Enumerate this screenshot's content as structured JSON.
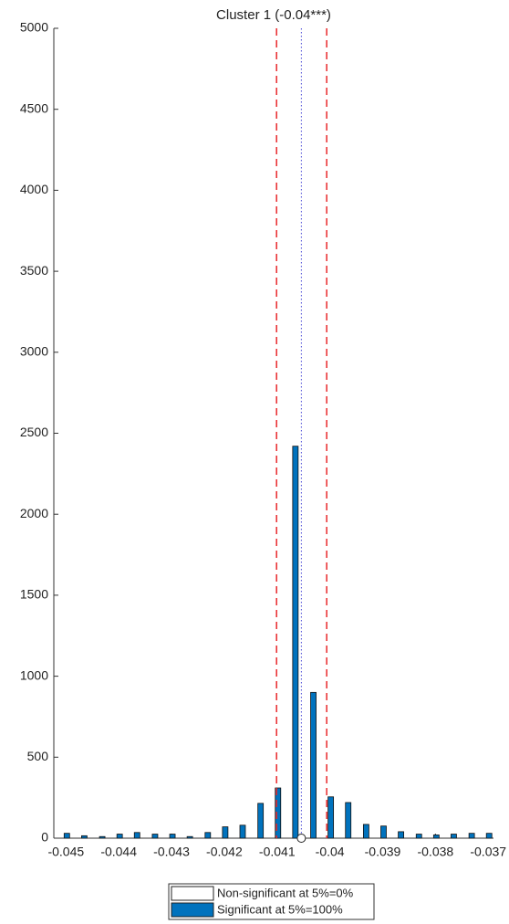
{
  "chart_data": {
    "type": "bar",
    "title": "Cluster 1 (-0.04***)",
    "x": [
      -0.045,
      -0.04467,
      -0.04433,
      -0.044,
      -0.04367,
      -0.04333,
      -0.043,
      -0.04267,
      -0.04233,
      -0.042,
      -0.04167,
      -0.04133,
      -0.041,
      -0.04067,
      -0.04033,
      -0.04,
      -0.03967,
      -0.03933,
      -0.039,
      -0.03867,
      -0.03833,
      -0.038,
      -0.03767,
      -0.03733,
      -0.037
    ],
    "series": [
      {
        "name": "Non-significant at 5%=0%",
        "color": "#ffffff",
        "values": [
          0,
          0,
          0,
          0,
          0,
          0,
          0,
          0,
          0,
          0,
          0,
          0,
          0,
          0,
          0,
          0,
          0,
          0,
          0,
          0,
          0,
          0,
          0,
          0,
          0
        ]
      },
      {
        "name": "Significant at 5%=100%",
        "color": "#0072bd",
        "values": [
          30,
          15,
          10,
          25,
          35,
          25,
          25,
          10,
          35,
          70,
          80,
          215,
          310,
          2420,
          900,
          255,
          220,
          85,
          75,
          40,
          25,
          20,
          25,
          30,
          30
        ]
      }
    ],
    "reference_lines": [
      {
        "value": -0.04101,
        "color": "#e8272a",
        "style": "dashed"
      },
      {
        "value": -0.04054,
        "color": "#4b4bd6",
        "style": "dotted"
      },
      {
        "value": -0.04006,
        "color": "#e8272a",
        "style": "dashed"
      }
    ],
    "mean_marker": -0.04054,
    "xlim": [
      -0.04523,
      -0.0369
    ],
    "xticks": [
      -0.045,
      -0.044,
      -0.043,
      -0.042,
      -0.041,
      -0.04,
      -0.039,
      -0.038,
      -0.037
    ],
    "ylim": [
      0,
      5000
    ],
    "yticks": [
      0,
      500,
      1000,
      1500,
      2000,
      2500,
      3000,
      3500,
      4000,
      4500,
      5000
    ],
    "grid": false
  }
}
